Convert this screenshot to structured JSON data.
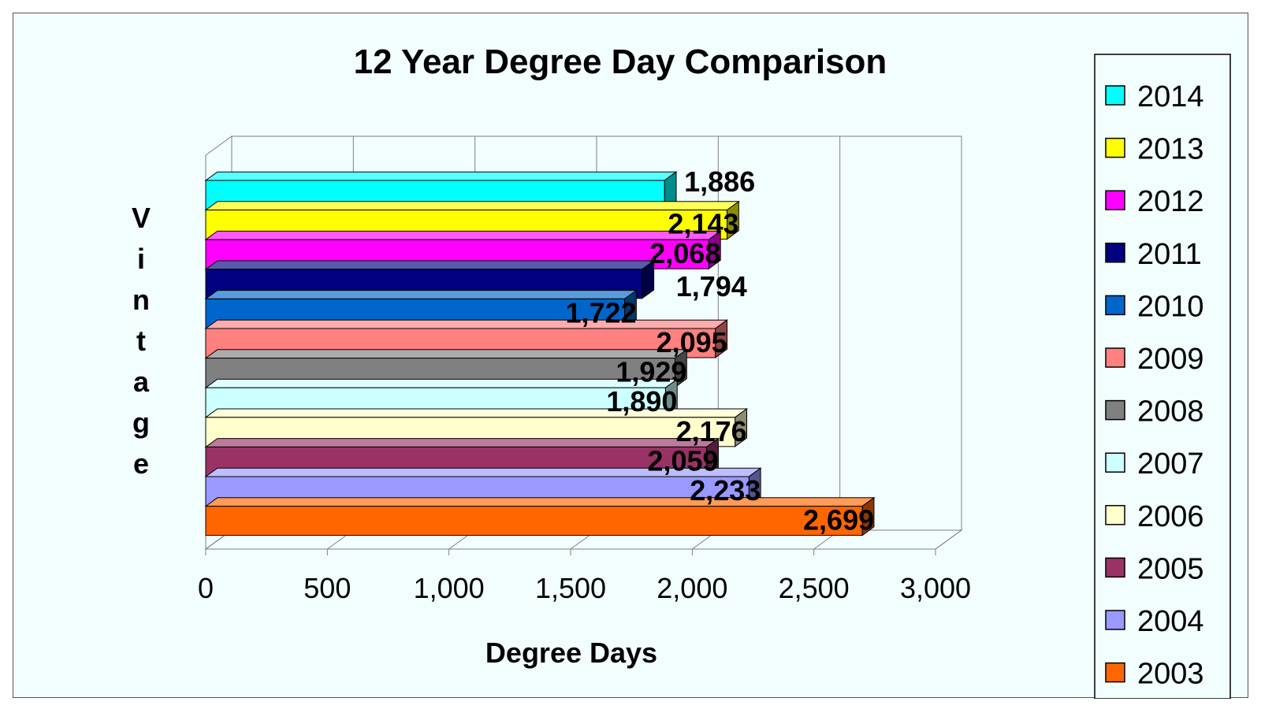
{
  "chart_data": {
    "type": "bar",
    "orientation": "horizontal",
    "style": "3d",
    "title": "12 Year Degree Day Comparison",
    "xlabel": "Degree Days",
    "ylabel": "Vintage",
    "xlim": [
      0,
      3000
    ],
    "xticks": [
      "0",
      "500",
      "1,000",
      "1,500",
      "2,000",
      "2,500",
      "3,000"
    ],
    "xtick_values": [
      0,
      500,
      1000,
      1500,
      2000,
      2500,
      3000
    ],
    "grid": "vertical",
    "legend_position": "right",
    "series": [
      {
        "name": "2014",
        "value": 1886,
        "label": "1,886",
        "color": "#00ffff"
      },
      {
        "name": "2013",
        "value": 2143,
        "label": "2,143",
        "color": "#ffff00"
      },
      {
        "name": "2012",
        "value": 2068,
        "label": "2,068",
        "color": "#ff00ff"
      },
      {
        "name": "2011",
        "value": 1794,
        "label": "1,794",
        "color": "#000080"
      },
      {
        "name": "2010",
        "value": 1722,
        "label": "1,722",
        "color": "#0066cc"
      },
      {
        "name": "2009",
        "value": 2095,
        "label": "2,095",
        "color": "#ff8080"
      },
      {
        "name": "2008",
        "value": 1929,
        "label": "1,929",
        "color": "#808080"
      },
      {
        "name": "2007",
        "value": 1890,
        "label": "1,890",
        "color": "#ccffff"
      },
      {
        "name": "2006",
        "value": 2176,
        "label": "2,176",
        "color": "#ffffcc"
      },
      {
        "name": "2005",
        "value": 2059,
        "label": "2,059",
        "color": "#993366"
      },
      {
        "name": "2004",
        "value": 2233,
        "label": "2,233",
        "color": "#9999ff"
      },
      {
        "name": "2003",
        "value": 2699,
        "label": "2,699",
        "color": "#ff6600"
      }
    ]
  }
}
